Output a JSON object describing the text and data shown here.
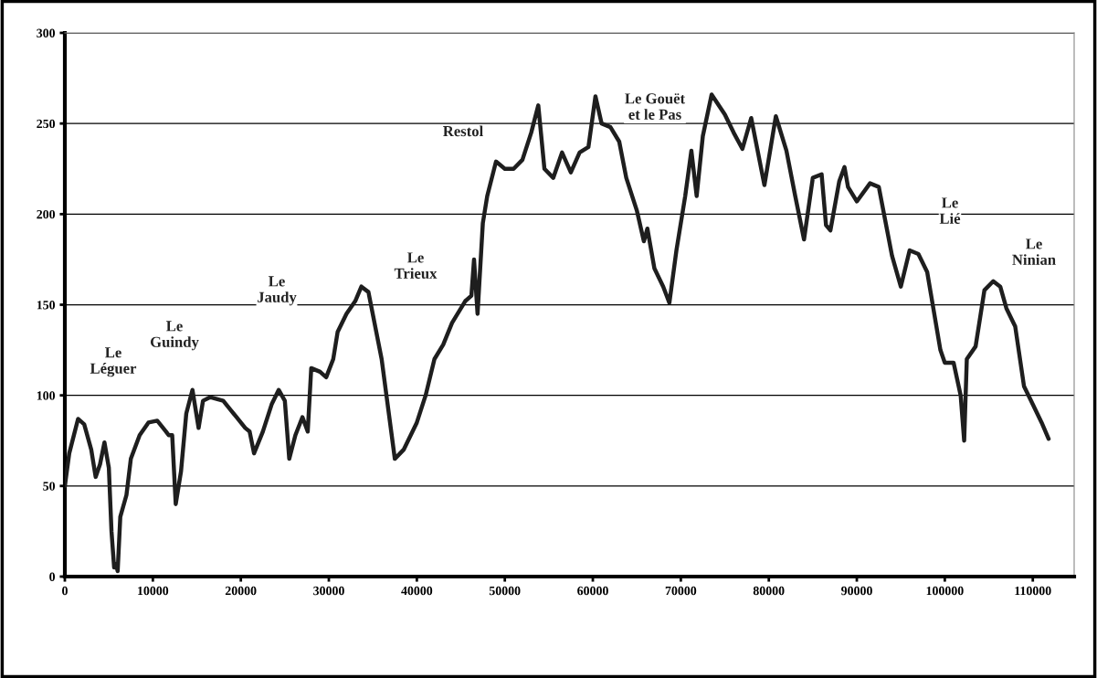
{
  "chart_data": {
    "type": "line",
    "grid": "y",
    "marker": "none",
    "line_style": "solid",
    "xlim": [
      0,
      114700
    ],
    "ylim": [
      0,
      300
    ],
    "xticks": [
      0,
      10000,
      20000,
      30000,
      40000,
      50000,
      60000,
      70000,
      80000,
      90000,
      100000,
      110000
    ],
    "yticks": [
      0,
      50,
      100,
      150,
      200,
      250,
      300
    ],
    "series": [
      {
        "color": "#1e1e1e",
        "x": [
          0,
          500,
          1500,
          2200,
          3000,
          3500,
          4000,
          4500,
          5000,
          5300,
          5600,
          5800,
          6000,
          6300,
          7000,
          7500,
          8500,
          9500,
          10500,
          11000,
          11500,
          11800,
          12200,
          12600,
          13200,
          13800,
          14500,
          15200,
          15700,
          16500,
          18000,
          19500,
          20500,
          21000,
          21500,
          22500,
          23500,
          24300,
          25000,
          25500,
          26200,
          27000,
          27600,
          28000,
          29000,
          29700,
          30500,
          31000,
          32000,
          33000,
          33700,
          34500,
          36000,
          37500,
          38500,
          40000,
          41000,
          42000,
          43000,
          44000,
          45500,
          46200,
          46500,
          46900,
          47500,
          48000,
          49000,
          50000,
          51000,
          52000,
          53000,
          53800,
          54500,
          55500,
          56500,
          57500,
          58500,
          59500,
          60300,
          61000,
          62000,
          63000,
          63800,
          65000,
          65800,
          66200,
          67000,
          68000,
          68700,
          69500,
          70500,
          71200,
          71800,
          72500,
          73500,
          75000,
          76000,
          77000,
          78000,
          79500,
          80800,
          82000,
          83000,
          84000,
          85000,
          86000,
          86500,
          87000,
          88000,
          88600,
          89000,
          90000,
          91500,
          92500,
          94000,
          95000,
          96000,
          97000,
          98000,
          99500,
          100000,
          101000,
          101800,
          102200,
          102500,
          103500,
          104500,
          105500,
          106300,
          107000,
          108000,
          109000,
          110000,
          111000,
          111800
        ],
        "values": [
          50,
          68,
          87,
          84,
          70,
          55,
          62,
          74,
          60,
          25,
          5,
          7,
          3,
          33,
          45,
          65,
          78,
          85,
          86,
          83,
          80,
          78,
          78,
          40,
          58,
          90,
          103,
          82,
          97,
          99,
          97,
          88,
          82,
          80,
          68,
          80,
          95,
          103,
          97,
          65,
          78,
          88,
          80,
          115,
          113,
          110,
          120,
          135,
          145,
          152,
          160,
          157,
          120,
          65,
          70,
          85,
          100,
          120,
          128,
          140,
          152,
          155,
          175,
          145,
          195,
          210,
          229,
          225,
          225,
          230,
          245,
          260,
          225,
          220,
          234,
          223,
          234,
          237,
          265,
          250,
          248,
          240,
          220,
          202,
          185,
          192,
          170,
          160,
          151,
          180,
          210,
          235,
          210,
          243,
          266,
          255,
          245,
          236,
          253,
          216,
          254,
          235,
          210,
          186,
          220,
          222,
          194,
          191,
          218,
          226,
          215,
          207,
          217,
          215,
          177,
          160,
          180,
          178,
          168,
          125,
          118,
          118,
          100,
          75,
          120,
          127,
          158,
          163,
          160,
          148,
          138,
          105,
          95,
          85,
          76
        ]
      }
    ],
    "annotations": [
      "Le\nLéguer",
      "Le\nGuindy",
      "Le\nJaudy",
      "Le\nTrieux",
      "Restol",
      "Le Gouët\net le Pas",
      "Le\nLié",
      "Le\nNinian"
    ]
  }
}
